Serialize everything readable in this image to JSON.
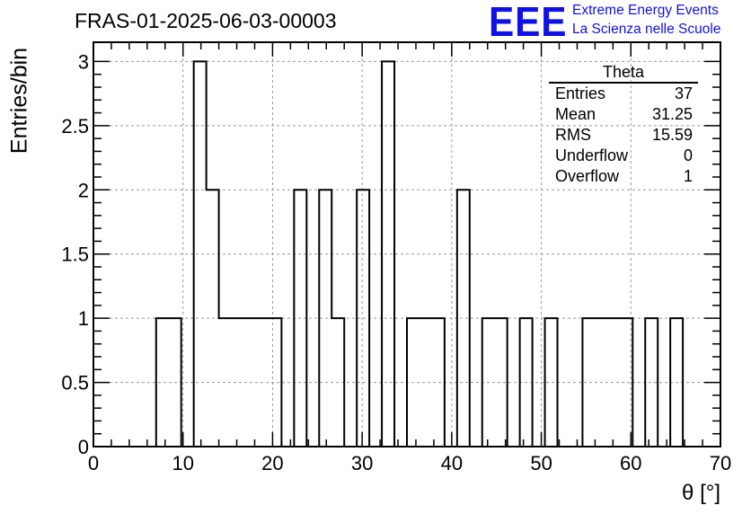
{
  "title": "FRAS-01-2025-06-03-00003",
  "logo": {
    "mark": "EEE",
    "line1": "Extreme Energy Events",
    "line2": "La Scienza nelle Scuole",
    "color": "#1010e8"
  },
  "stats_box": {
    "title": "Theta",
    "rows": [
      {
        "label": "Entries",
        "value": "37"
      },
      {
        "label": "Mean",
        "value": "31.25"
      },
      {
        "label": "RMS",
        "value": "15.59"
      },
      {
        "label": "Underflow",
        "value": "0"
      },
      {
        "label": "Overflow",
        "value": "1"
      }
    ]
  },
  "chart_data": {
    "type": "bar",
    "style": "step-histogram",
    "xlabel": "θ [°]",
    "ylabel": "Entries/bin",
    "xlim": [
      0,
      70
    ],
    "ylim": [
      0,
      3.15
    ],
    "grid": true,
    "xticks": [
      0,
      10,
      20,
      30,
      40,
      50,
      60,
      70
    ],
    "yticks": [
      0,
      0.5,
      1,
      1.5,
      2,
      2.5,
      3
    ],
    "xtick_labels": [
      "0",
      "10",
      "20",
      "30",
      "40",
      "50",
      "60",
      "70"
    ],
    "ytick_labels": [
      "0",
      "0.5",
      "1",
      "1.5",
      "2",
      "2.5",
      "3"
    ],
    "bin_width": 1.4,
    "bin_edges_start": 0,
    "counts": [
      0,
      0,
      0,
      0,
      0,
      1,
      1,
      0,
      3,
      2,
      1,
      1,
      1,
      1,
      1,
      0,
      2,
      0,
      2,
      1,
      0,
      2,
      0,
      3,
      0,
      1,
      1,
      1,
      0,
      2,
      0,
      1,
      1,
      0,
      1,
      0,
      1,
      0,
      0,
      1,
      1,
      1,
      1,
      0,
      1,
      0,
      1,
      0,
      0,
      0
    ]
  }
}
